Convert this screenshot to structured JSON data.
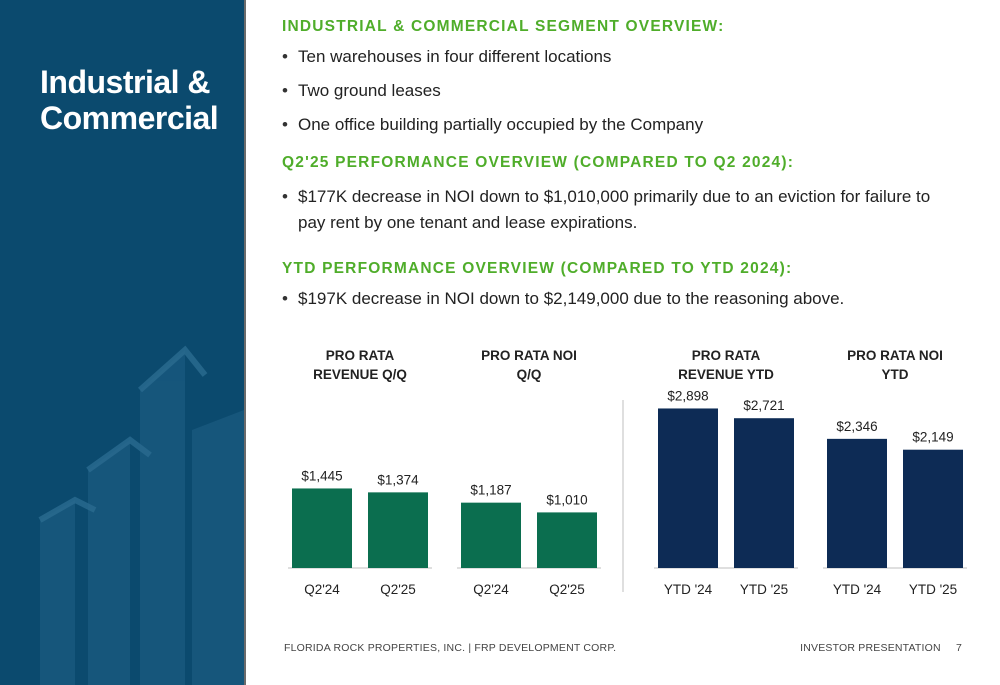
{
  "panel": {
    "title_line1": "Industrial &",
    "title_line2": "Commercial"
  },
  "sections": [
    {
      "heading": "INDUSTRIAL & COMMERCIAL SEGMENT OVERVIEW:",
      "bullets": [
        "Ten warehouses in four different locations",
        "Two ground leases",
        "One office building partially occupied by the Company"
      ]
    },
    {
      "heading": "Q2'25 PERFORMANCE OVERVIEW (COMPARED TO Q2 2024):",
      "bullets": [
        "$177K decrease in NOI down to $1,010,000 primarily due to an eviction for  failure to pay rent by one tenant and lease expirations."
      ]
    },
    {
      "heading": "YTD PERFORMANCE OVERVIEW (COMPARED TO YTD 2024):",
      "bullets": [
        "$197K decrease in NOI down to $2,149,000 due to the reasoning above."
      ]
    }
  ],
  "chart_data": [
    {
      "type": "bar",
      "title": [
        "PRO RATA",
        "REVENUE Q/Q"
      ],
      "categories": [
        "Q2'24",
        "Q2'25"
      ],
      "values": [
        1445,
        1374
      ],
      "value_labels": [
        "$1,445",
        "$1,374"
      ],
      "color": "#0b6e4f",
      "ylim": [
        0,
        3000
      ],
      "grid": false
    },
    {
      "type": "bar",
      "title": [
        "PRO RATA NOI",
        "Q/Q"
      ],
      "categories": [
        "Q2'24",
        "Q2'25"
      ],
      "values": [
        1187,
        1010
      ],
      "value_labels": [
        "$1,187",
        "$1,010"
      ],
      "color": "#0b6e4f",
      "ylim": [
        0,
        3000
      ],
      "grid": false
    },
    {
      "type": "bar",
      "title": [
        "PRO RATA",
        "REVENUE YTD"
      ],
      "categories": [
        "YTD '24",
        "YTD '25"
      ],
      "values": [
        2898,
        2721
      ],
      "value_labels": [
        "$2,898",
        "$2,721"
      ],
      "color": "#0d2b55",
      "ylim": [
        0,
        3000
      ],
      "grid": false
    },
    {
      "type": "bar",
      "title": [
        "PRO RATA NOI",
        "YTD"
      ],
      "categories": [
        "YTD '24",
        "YTD '25"
      ],
      "values": [
        2346,
        2149
      ],
      "value_labels": [
        "$2,346",
        "$2,149"
      ],
      "color": "#0d2b55",
      "ylim": [
        0,
        3000
      ],
      "grid": false
    }
  ],
  "footer": {
    "left": "FLORIDA ROCK PROPERTIES, INC. | FRP DEVELOPMENT CORP.",
    "right": "INVESTOR PRESENTATION",
    "page": "7"
  }
}
